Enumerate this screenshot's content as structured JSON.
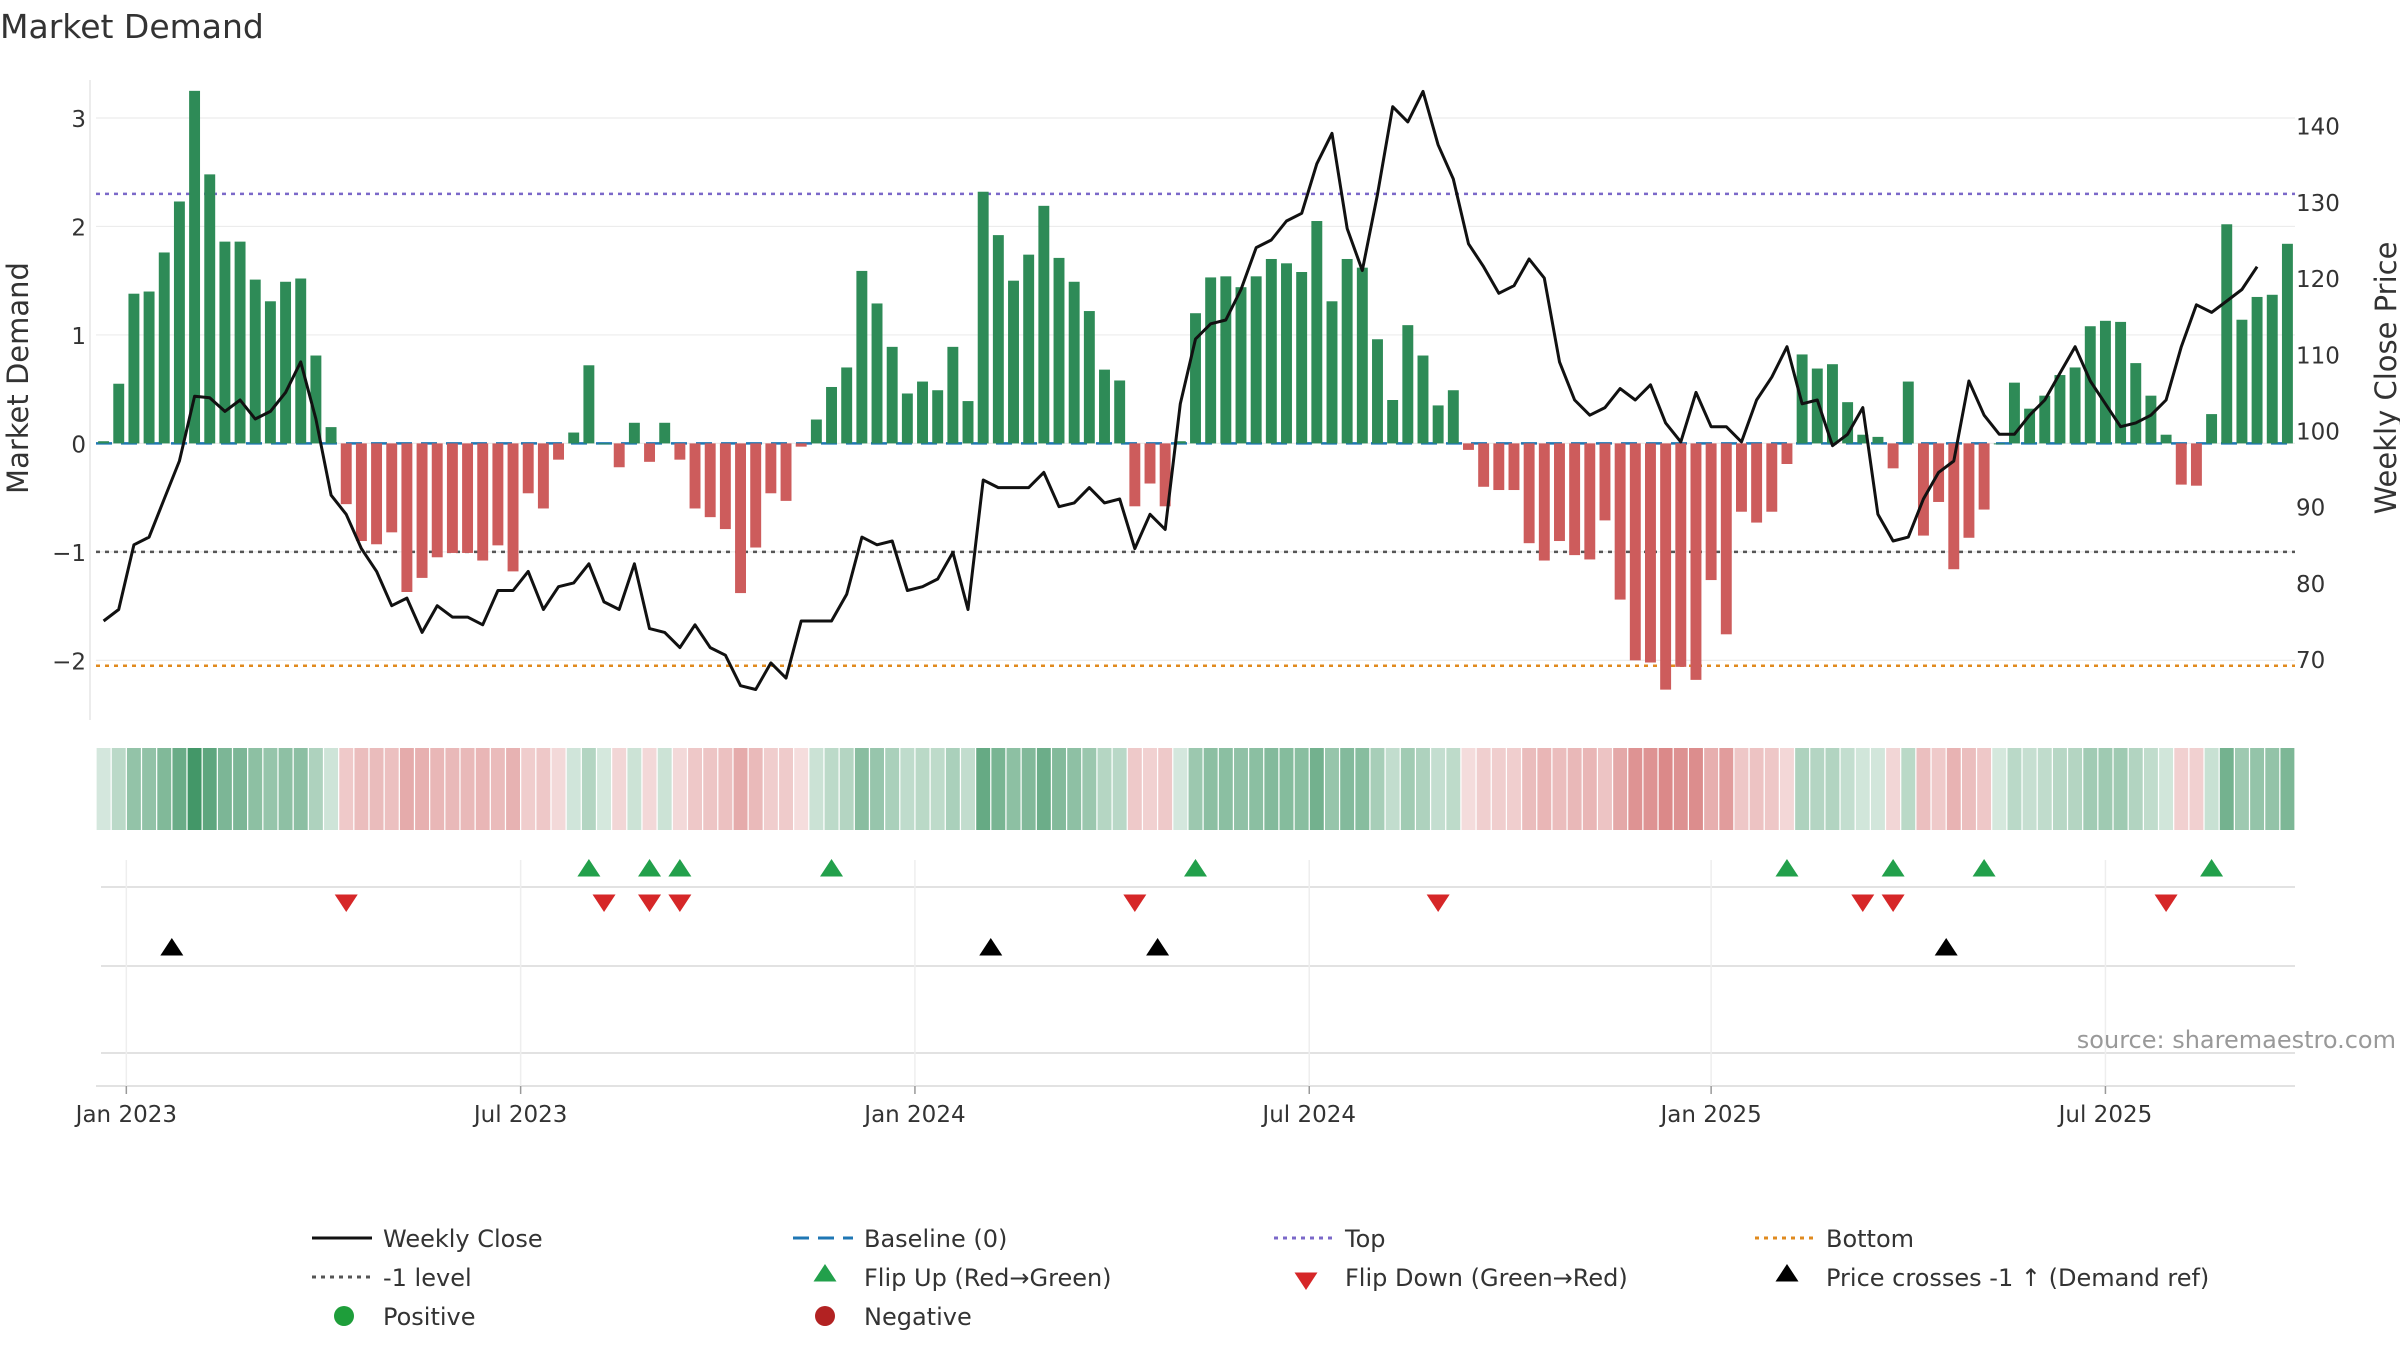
{
  "chart_data": {
    "type": "bar+line",
    "title": "Market Demand",
    "ylabel_left": "Market Demand",
    "ylabel_right": "Weekly Close Price",
    "ylim_left": [
      -2.55,
      3.35
    ],
    "ylim_right": [
      62,
      146
    ],
    "yticks_left": [
      "3",
      "2",
      "1",
      "0",
      "−1",
      "−2"
    ],
    "yticks_left_values": [
      3,
      2,
      1,
      0,
      -1,
      -2
    ],
    "yticks_right": [
      "140",
      "130",
      "120",
      "110",
      "100",
      "90",
      "80",
      "70"
    ],
    "yticks_right_values": [
      140,
      130,
      120,
      110,
      100,
      90,
      80,
      70
    ],
    "x_ticks": [
      "Jan 2023",
      "Jul 2023",
      "Jan 2024",
      "Jul 2024",
      "Jan 2025",
      "Jul 2025"
    ],
    "x_tick_weeks": [
      1.5,
      27.5,
      53.5,
      79.5,
      106,
      132
    ],
    "levels": {
      "top": 2.3,
      "minus_one": -1.0,
      "bottom": -2.05,
      "baseline": 0
    },
    "demand": [
      0.02,
      0.55,
      1.38,
      1.4,
      1.76,
      2.23,
      3.25,
      2.48,
      1.86,
      1.86,
      1.51,
      1.31,
      1.49,
      1.52,
      0.81,
      0.15,
      -0.56,
      -0.9,
      -0.93,
      -0.82,
      -1.37,
      -1.24,
      -1.05,
      -1.01,
      -1.01,
      -1.08,
      -0.94,
      -1.18,
      -0.46,
      -0.6,
      -0.15,
      0.1,
      0.72,
      0.0,
      -0.22,
      0.19,
      -0.17,
      0.19,
      -0.15,
      -0.6,
      -0.68,
      -0.79,
      -1.38,
      -0.96,
      -0.46,
      -0.53,
      -0.03,
      0.22,
      0.52,
      0.7,
      1.59,
      1.29,
      0.89,
      0.46,
      0.57,
      0.49,
      0.89,
      0.39,
      2.32,
      1.92,
      1.5,
      1.74,
      2.19,
      1.71,
      1.49,
      1.22,
      0.68,
      0.58,
      -0.58,
      -0.37,
      -0.58,
      0.02,
      1.2,
      1.53,
      1.54,
      1.44,
      1.54,
      1.7,
      1.66,
      1.58,
      2.05,
      1.31,
      1.7,
      1.62,
      0.96,
      0.4,
      1.09,
      0.81,
      0.35,
      0.49,
      -0.06,
      -0.4,
      -0.43,
      -0.43,
      -0.92,
      -1.08,
      -0.9,
      -1.03,
      -1.07,
      -0.71,
      -1.44,
      -2.0,
      -2.02,
      -2.27,
      -2.06,
      -2.18,
      -1.26,
      -1.76,
      -0.63,
      -0.73,
      -0.63,
      -0.19,
      0.82,
      0.69,
      0.73,
      0.38,
      0.08,
      0.06,
      -0.23,
      0.57,
      -0.85,
      -0.54,
      -1.16,
      -0.87,
      -0.61,
      0.0,
      0.56,
      0.32,
      0.44,
      0.63,
      0.7,
      1.08,
      1.13,
      1.12,
      0.74,
      0.44,
      0.08,
      -0.38,
      -0.39,
      0.27,
      2.02,
      1.14,
      1.35,
      1.37,
      1.84
    ],
    "weekly_close": [
      75,
      76.5,
      85,
      86,
      91,
      96,
      104.5,
      104.3,
      102.5,
      104,
      101.5,
      102.5,
      105,
      109,
      101.5,
      91.5,
      89,
      84.5,
      81.5,
      77,
      78,
      73.5,
      77,
      75.5,
      75.5,
      74.5,
      79,
      79,
      81.5,
      76.5,
      79.5,
      80,
      82.5,
      77.5,
      76.5,
      82.5,
      74,
      73.5,
      71.5,
      74.5,
      71.5,
      70.5,
      66.5,
      66,
      69.5,
      67.5,
      75,
      75,
      75,
      78.5,
      86,
      85,
      85.5,
      79,
      79.5,
      80.5,
      84,
      76.5,
      93.5,
      92.5,
      92.5,
      92.5,
      94.5,
      90,
      90.5,
      92.5,
      90.5,
      91,
      84.5,
      89,
      87,
      103.5,
      112,
      114,
      114.5,
      118.5,
      124,
      125,
      127.5,
      128.5,
      135,
      139,
      126.5,
      121,
      131,
      142.5,
      140.5,
      144.5,
      137.5,
      133,
      124.5,
      121.5,
      118,
      119,
      122.5,
      120,
      109,
      104,
      102,
      103,
      105.5,
      104,
      106,
      101,
      98.5,
      105,
      100.5,
      100.5,
      98.5,
      104,
      107,
      111,
      103.5,
      104,
      98,
      99.5,
      103,
      89,
      85.5,
      86,
      91,
      94.5,
      96,
      106.5,
      102,
      99.5,
      99.5,
      102,
      104,
      107.5,
      111,
      106.5,
      103.5,
      100.5,
      101,
      102,
      104,
      111,
      116.5,
      115.5,
      117,
      118.5,
      121.5
    ],
    "flip_up_weeks": [
      32,
      36,
      38,
      48,
      72,
      111,
      118,
      124,
      139
    ],
    "flip_down_weeks": [
      16,
      33,
      36,
      38,
      68,
      88,
      116,
      118,
      136
    ],
    "cross_weeks": [
      4.5,
      58.5,
      69.5,
      121.5
    ],
    "colors": {
      "green": "#2e8b57",
      "red": "#cd5c5c",
      "line": "#111111",
      "baseline": "#1f77b4",
      "top": "#7b68c9",
      "minus_one": "#555555",
      "bottom": "#e08a1e",
      "flip_up": "#22a04b",
      "flip_down": "#d62728",
      "cross": "#000000"
    },
    "source": "source: sharemaestro.com",
    "legend": [
      {
        "label": "Weekly Close",
        "marker": "solid-line"
      },
      {
        "label": "Baseline (0)",
        "marker": "blue-dashed-line"
      },
      {
        "label": "Top",
        "marker": "purple-dotted-line"
      },
      {
        "label": "Bottom",
        "marker": "orange-dotted-line"
      },
      {
        "label": "-1 level",
        "marker": "gray-dotted-line"
      },
      {
        "label": "Flip Up (Red→Green)",
        "marker": "green-up-triangle"
      },
      {
        "label": "Flip Down (Green→Red)",
        "marker": "red-down-triangle"
      },
      {
        "label": "Price crosses -1 ↑ (Demand ref)",
        "marker": "black-up-triangle"
      },
      {
        "label": "Positive",
        "marker": "green-dot"
      },
      {
        "label": "Negative",
        "marker": "red-dot"
      }
    ]
  }
}
